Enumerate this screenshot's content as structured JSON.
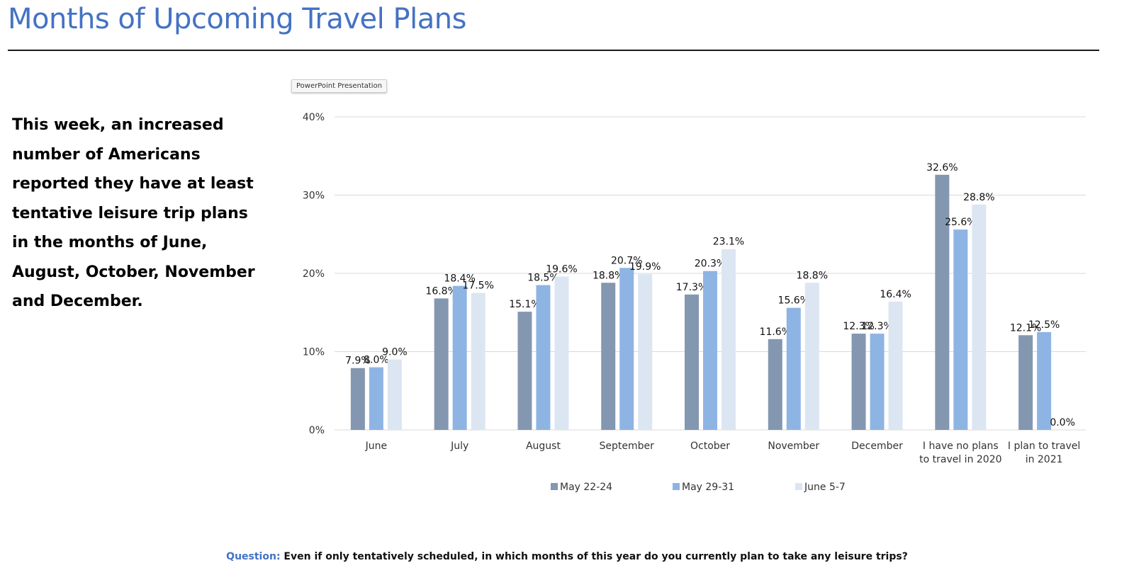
{
  "page": {
    "title": "Months of Upcoming Travel Plans",
    "summary": "This week, an increased number of Americans reported they have at least tentative leisure trip plans in the months of June, August, October, November and December.",
    "tooltip": "PowerPoint Presentation",
    "question_label": "Question:",
    "question_text": "Even if only tentatively scheduled, in which months of this year do you currently plan to take any leisure trips?"
  },
  "colors": {
    "title": "#4472c4",
    "series": [
      "#8497b0",
      "#8eb4e3",
      "#dce6f2"
    ],
    "gridline": "#d9d9d9"
  },
  "chart_data": {
    "type": "bar",
    "title": "",
    "xlabel": "",
    "ylabel": "",
    "ylim": [
      0,
      40
    ],
    "yticks": [
      0,
      10,
      20,
      30,
      40
    ],
    "ytick_labels": [
      "0%",
      "10%",
      "20%",
      "30%",
      "40%"
    ],
    "grid": true,
    "legend_position": "bottom",
    "categories": [
      "June",
      "July",
      "August",
      "September",
      "October",
      "November",
      "December",
      "I have no plans to travel in 2020",
      "I plan to travel in 2021"
    ],
    "category_lines": [
      [
        "June"
      ],
      [
        "July"
      ],
      [
        "August"
      ],
      [
        "September"
      ],
      [
        "October"
      ],
      [
        "November"
      ],
      [
        "December"
      ],
      [
        "I have no plans",
        "to travel in 2020"
      ],
      [
        "I plan to travel",
        "in 2021"
      ]
    ],
    "series": [
      {
        "name": "May 22-24",
        "values": [
          7.9,
          16.8,
          15.1,
          18.8,
          17.3,
          11.6,
          12.3,
          32.6,
          12.1
        ],
        "labels": [
          "7.9%",
          "16.8%",
          "15.1%",
          "18.8%",
          "17.3%",
          "11.6%",
          "12.3%",
          "32.6%",
          "12.1%"
        ]
      },
      {
        "name": "May 29-31",
        "values": [
          8.0,
          18.4,
          18.5,
          20.7,
          20.3,
          15.6,
          12.3,
          25.6,
          12.5
        ],
        "labels": [
          "8.0%",
          "18.4%",
          "18.5%",
          "20.7%",
          "20.3%",
          "15.6%",
          "12.3%",
          "25.6%",
          "12.5%"
        ]
      },
      {
        "name": "June 5-7",
        "values": [
          9.0,
          17.5,
          19.6,
          19.9,
          23.1,
          18.8,
          16.4,
          28.8,
          0.0
        ],
        "labels": [
          "9.0%",
          "17.5%",
          "19.6%",
          "19.9%",
          "23.1%",
          "18.8%",
          "16.4%",
          "28.8%",
          "0.0%"
        ]
      }
    ]
  }
}
